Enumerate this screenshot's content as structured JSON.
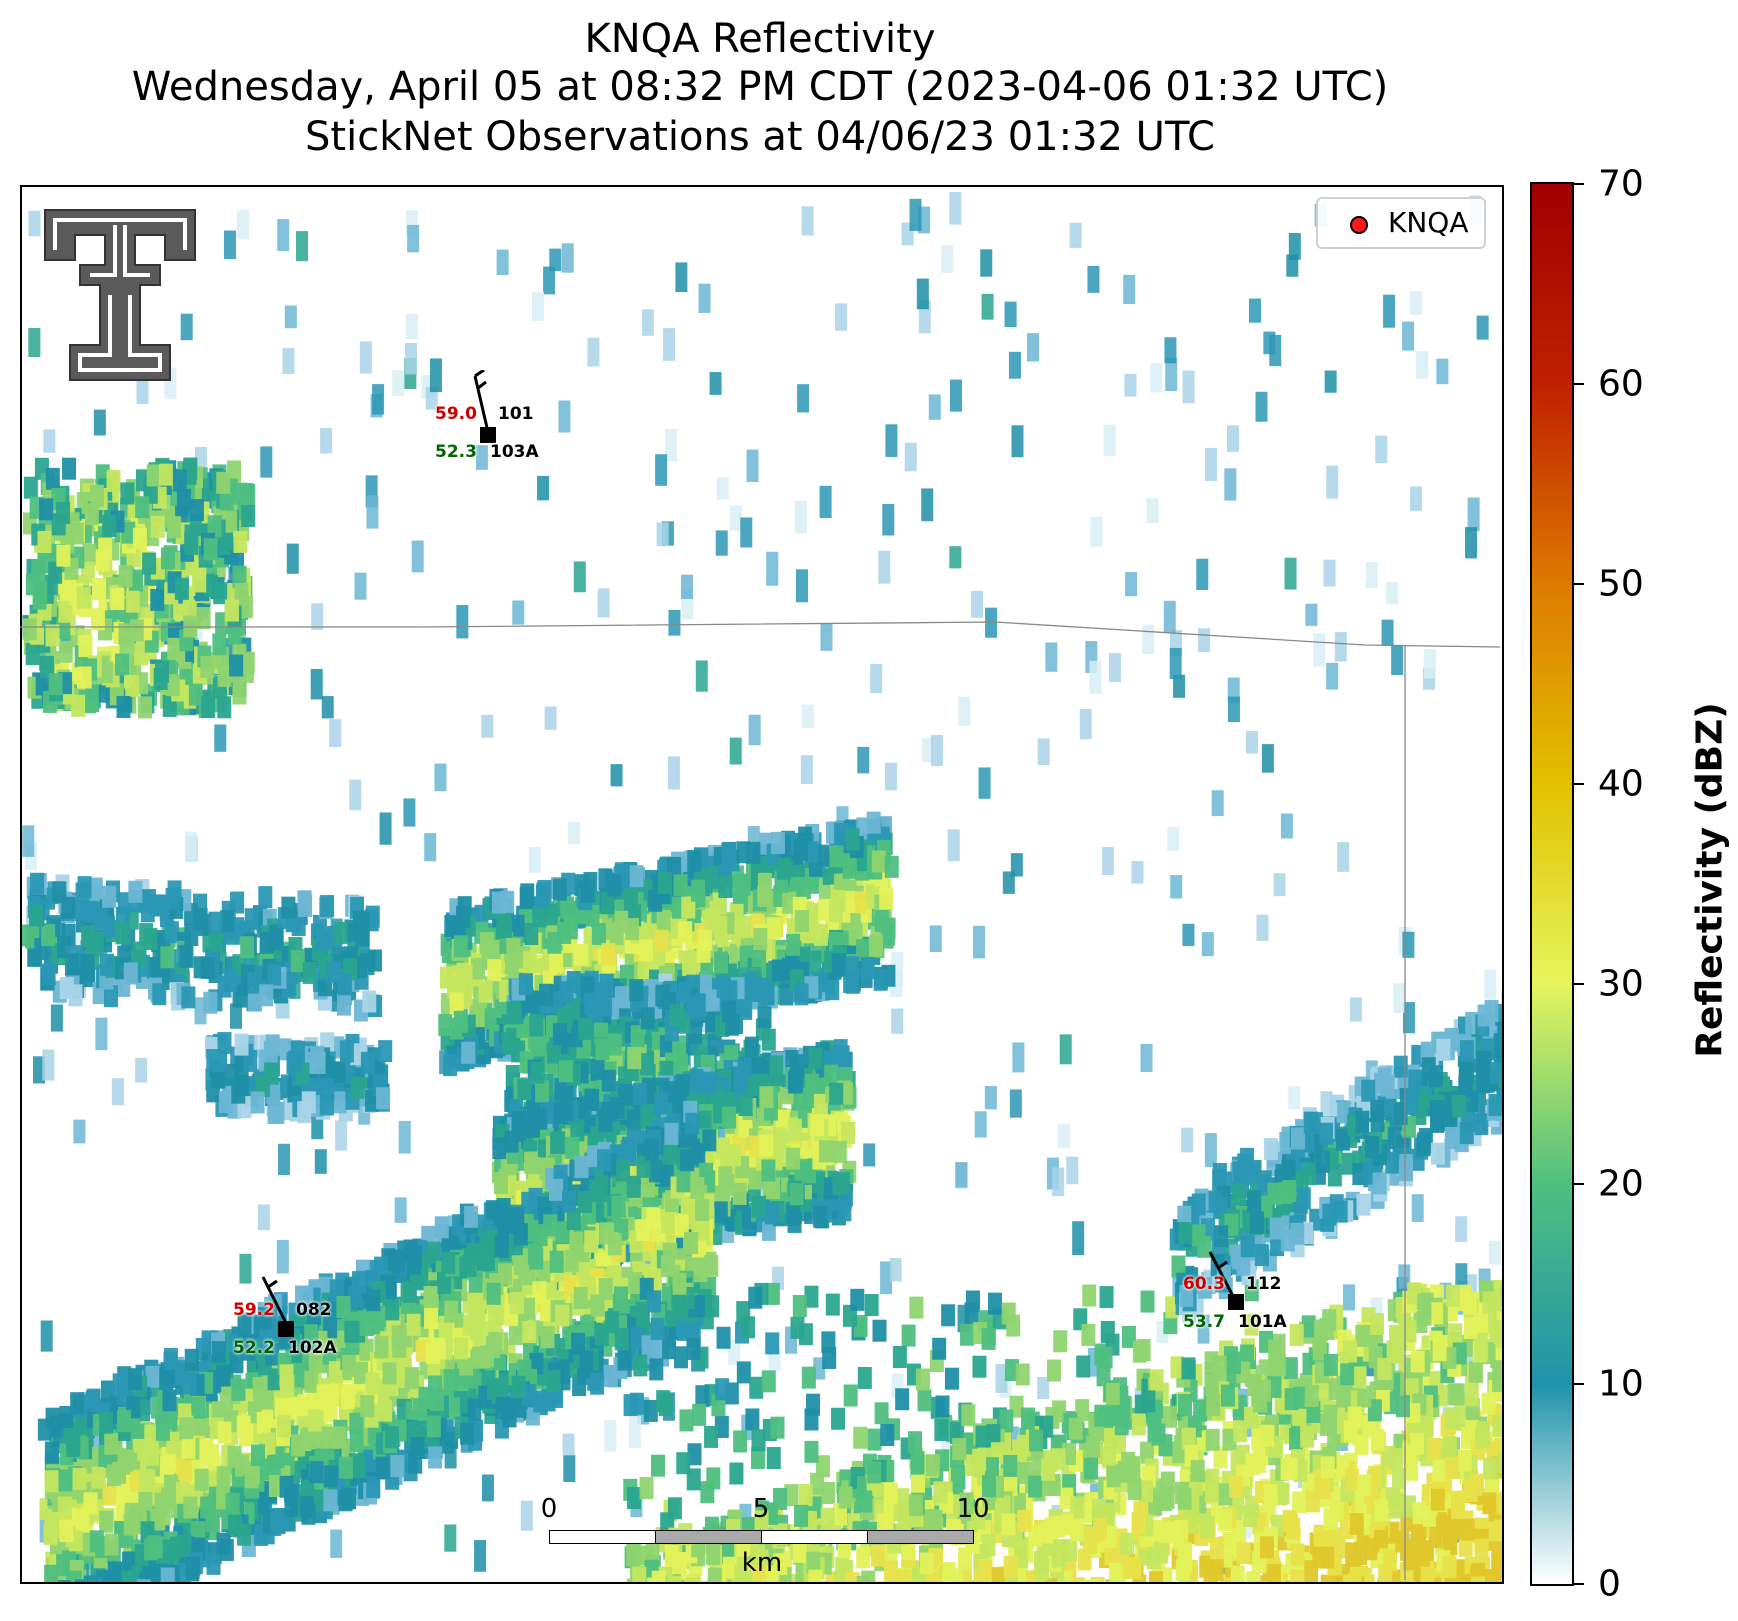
{
  "title": {
    "line1": "KNQA Reflectivity",
    "line2": "Wednesday, April 05 at 08:32 PM CDT (2023-04-06 01:32 UTC)",
    "line3": "StickNet Observations at 04/06/23 01:32 UTC"
  },
  "legend": {
    "label": "KNQA",
    "marker_color": "#ff1a1a"
  },
  "colorbar": {
    "title": "Reflectivity (dBZ)",
    "ticks": [
      "0",
      "10",
      "20",
      "30",
      "40",
      "50",
      "60",
      "70"
    ],
    "range": [
      0,
      70
    ],
    "colors": [
      "#ffffff",
      "#1f93aa",
      "#4fbf7f",
      "#e5f55c",
      "#e2c100",
      "#dd7a00",
      "#c02000",
      "#a00000"
    ]
  },
  "logo": {
    "name": "Texas Tech Double T"
  },
  "stations": [
    {
      "temp": "59.0",
      "dew": "52.3",
      "id_top": "101",
      "id_bottom": "103A"
    },
    {
      "temp": "59.2",
      "dew": "52.2",
      "id_top": "082",
      "id_bottom": "102A"
    },
    {
      "temp": "60.3",
      "dew": "53.7",
      "id_top": "112",
      "id_bottom": "101A"
    }
  ],
  "scalebar": {
    "labels": [
      "0",
      "5",
      "10"
    ],
    "unit": "km"
  }
}
